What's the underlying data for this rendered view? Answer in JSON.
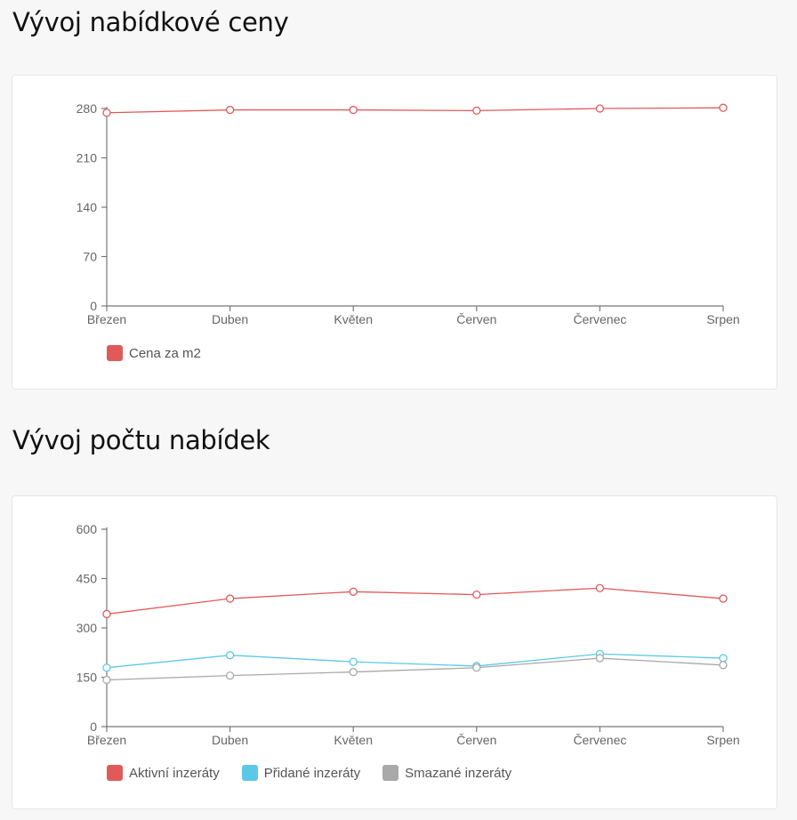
{
  "sections": [
    {
      "title": "Vývoj nabídkové ceny",
      "chart_data": {
        "type": "line",
        "categories": [
          "Březen",
          "Duben",
          "Květen",
          "Červen",
          "Červenec",
          "Srpen"
        ],
        "ylim": [
          0,
          280
        ],
        "yticks": [
          0,
          70,
          140,
          210,
          280
        ],
        "series": [
          {
            "name": "Cena za m2",
            "color": "#e05a5a",
            "values": [
              274,
              278,
              278,
              277,
              280,
              281
            ]
          }
        ],
        "legend_position": "bottom-left",
        "grid": false
      }
    },
    {
      "title": "Vývoj počtu nabídek",
      "chart_data": {
        "type": "line",
        "categories": [
          "Březen",
          "Duben",
          "Květen",
          "Červen",
          "Červenec",
          "Srpen"
        ],
        "ylim": [
          0,
          600
        ],
        "yticks": [
          0,
          150,
          300,
          450,
          600
        ],
        "series": [
          {
            "name": "Aktivní inzeráty",
            "color": "#e05a5a",
            "values": [
              342,
              389,
              410,
              401,
              421,
              389
            ]
          },
          {
            "name": "Přidané inzeráty",
            "color": "#5bc8e8",
            "values": [
              179,
              217,
              197,
              184,
              221,
              208
            ]
          },
          {
            "name": "Smazané inzeráty",
            "color": "#a9a9a9",
            "values": [
              142,
              155,
              166,
              179,
              208,
              187
            ]
          }
        ],
        "legend_position": "bottom-left",
        "grid": false
      }
    }
  ]
}
